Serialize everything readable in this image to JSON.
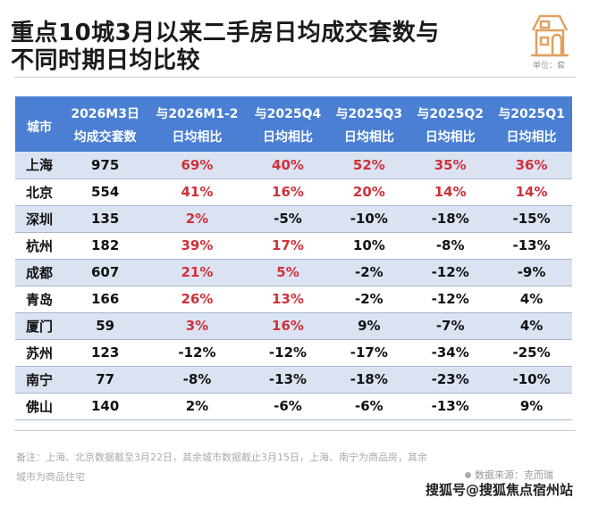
{
  "title": {
    "line1": "重点10城3月以来二手房日均成交套数与",
    "line2": "不同时期日均比较"
  },
  "unit": "单位：套",
  "colors": {
    "header": "#4a7fd4",
    "stripe": "#dbe3f3",
    "positive": "#d0313a"
  },
  "table": {
    "headers": [
      [
        "城市",
        ""
      ],
      [
        "2026M3日",
        "均成交套数"
      ],
      [
        "与2026M1-2",
        "日均相比"
      ],
      [
        "与2025Q4",
        "日均相比"
      ],
      [
        "与2025Q3",
        "日均相比"
      ],
      [
        "与2025Q2",
        "日均相比"
      ],
      [
        "与2025Q1",
        "日均相比"
      ]
    ],
    "rows": [
      {
        "city": "上海",
        "count": "975",
        "vals": [
          "69%",
          "40%",
          "52%",
          "35%",
          "36%"
        ],
        "red": [
          1,
          1,
          1,
          1,
          1
        ]
      },
      {
        "city": "北京",
        "count": "554",
        "vals": [
          "41%",
          "16%",
          "20%",
          "14%",
          "14%"
        ],
        "red": [
          1,
          1,
          1,
          1,
          1
        ]
      },
      {
        "city": "深圳",
        "count": "135",
        "vals": [
          "2%",
          "-5%",
          "-10%",
          "-18%",
          "-15%"
        ],
        "red": [
          1,
          0,
          0,
          0,
          0
        ]
      },
      {
        "city": "杭州",
        "count": "182",
        "vals": [
          "39%",
          "17%",
          "10%",
          "-8%",
          "-13%"
        ],
        "red": [
          1,
          1,
          0,
          0,
          0
        ]
      },
      {
        "city": "成都",
        "count": "607",
        "vals": [
          "21%",
          "5%",
          "-2%",
          "-12%",
          "-9%"
        ],
        "red": [
          1,
          1,
          0,
          0,
          0
        ]
      },
      {
        "city": "青岛",
        "count": "166",
        "vals": [
          "26%",
          "13%",
          "-2%",
          "-12%",
          "4%"
        ],
        "red": [
          1,
          1,
          0,
          0,
          0
        ]
      },
      {
        "city": "厦门",
        "count": "59",
        "vals": [
          "3%",
          "16%",
          "9%",
          "-7%",
          "4%"
        ],
        "red": [
          1,
          1,
          0,
          0,
          0
        ]
      },
      {
        "city": "苏州",
        "count": "123",
        "vals": [
          "-12%",
          "-12%",
          "-17%",
          "-34%",
          "-25%"
        ],
        "red": [
          0,
          0,
          0,
          0,
          0
        ]
      },
      {
        "city": "南宁",
        "count": "77",
        "vals": [
          "-8%",
          "-13%",
          "-18%",
          "-23%",
          "-10%"
        ],
        "red": [
          0,
          0,
          0,
          0,
          0
        ]
      },
      {
        "city": "佛山",
        "count": "140",
        "vals": [
          "2%",
          "-6%",
          "-6%",
          "-13%",
          "9%"
        ],
        "red": [
          0,
          0,
          0,
          0,
          0
        ]
      }
    ]
  },
  "note": "备注：上海、北京数据截至3月22日，其余城市数据截止3月15日，上海、南宁为商品房，其余城市为商品住宅",
  "source": "数据来源：克而瑞",
  "watermark": "搜狐号@搜狐焦点宿州站"
}
